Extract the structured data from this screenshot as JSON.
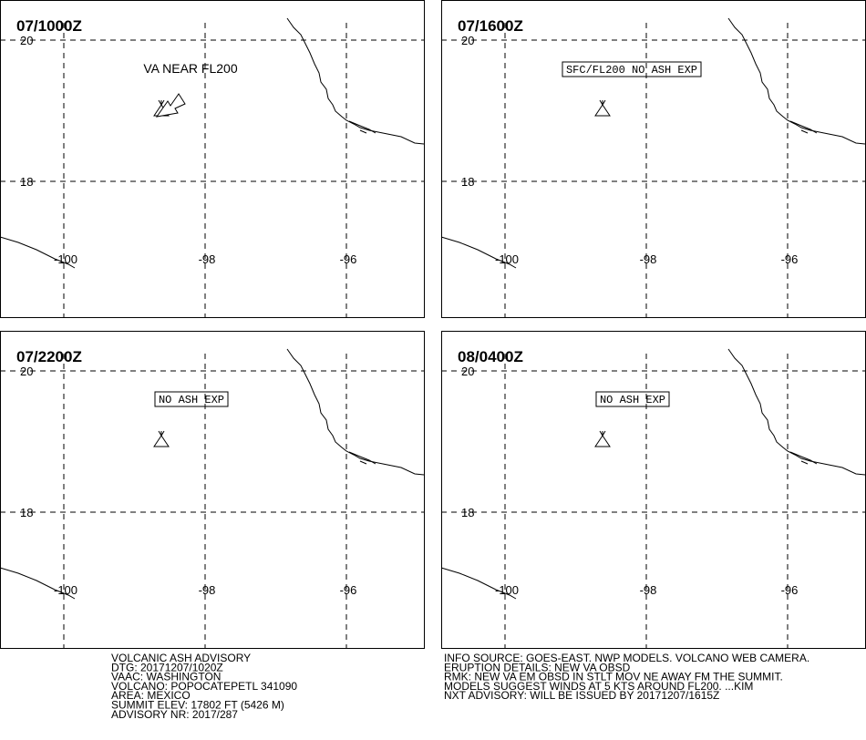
{
  "grid": {
    "lat": [
      20,
      18
    ],
    "lon": [
      -100,
      -98,
      -96
    ]
  },
  "panels": [
    {
      "time": "07/1000Z",
      "annotation": "VA NEAR FL200"
    },
    {
      "time": "07/1600Z",
      "annotation": "SFC/FL200 NO ASH EXP"
    },
    {
      "time": "07/2200Z",
      "annotation": "NO ASH EXP"
    },
    {
      "time": "08/0400Z",
      "annotation": "NO ASH EXP"
    }
  ],
  "footer": {
    "left": [
      "VOLCANIC ASH ADVISORY",
      "DTG: 20171207/1020Z",
      "VAAC: WASHINGTON",
      "VOLCANO: POPOCATEPETL 341090",
      "AREA: MEXICO",
      "SUMMIT ELEV: 17802 FT (5426 M)",
      "ADVISORY NR: 2017/287"
    ],
    "right": [
      "INFO SOURCE: GOES-EAST. NWP MODELS. VOLCANO WEB CAMERA.",
      "ERUPTION DETAILS: NEW VA OBSD",
      "RMK: NEW VA EM OBSD IN STLT MOV NE AWAY FM THE SUMMIT.",
      "MODELS SUGGEST WINDS AT 5 KTS AROUND FL200. ...KIM",
      "NXT ADVISORY: WILL BE ISSUED BY 20171207/1615Z"
    ]
  }
}
